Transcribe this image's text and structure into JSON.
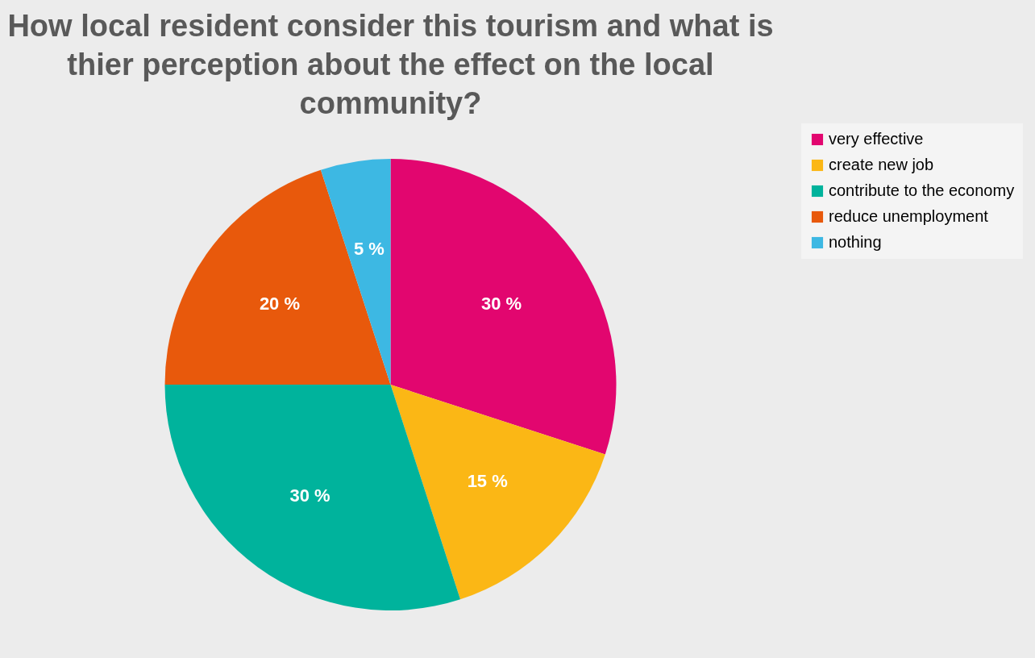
{
  "chart_data": {
    "type": "pie",
    "title": "How local resident consider this tourism and what is thier perception about the effect on the local community?",
    "categories": [
      "very effective",
      "create new job",
      "contribute to the economy",
      "reduce unemployment",
      "nothing"
    ],
    "values": [
      30,
      15,
      30,
      20,
      5
    ],
    "colors": [
      "#e2066f",
      "#fbb715",
      "#00b39c",
      "#e8590c",
      "#3db8e3"
    ],
    "value_labels": [
      "30 %",
      "15 %",
      "30 %",
      "20 %",
      "5 %"
    ],
    "legend": "right"
  }
}
